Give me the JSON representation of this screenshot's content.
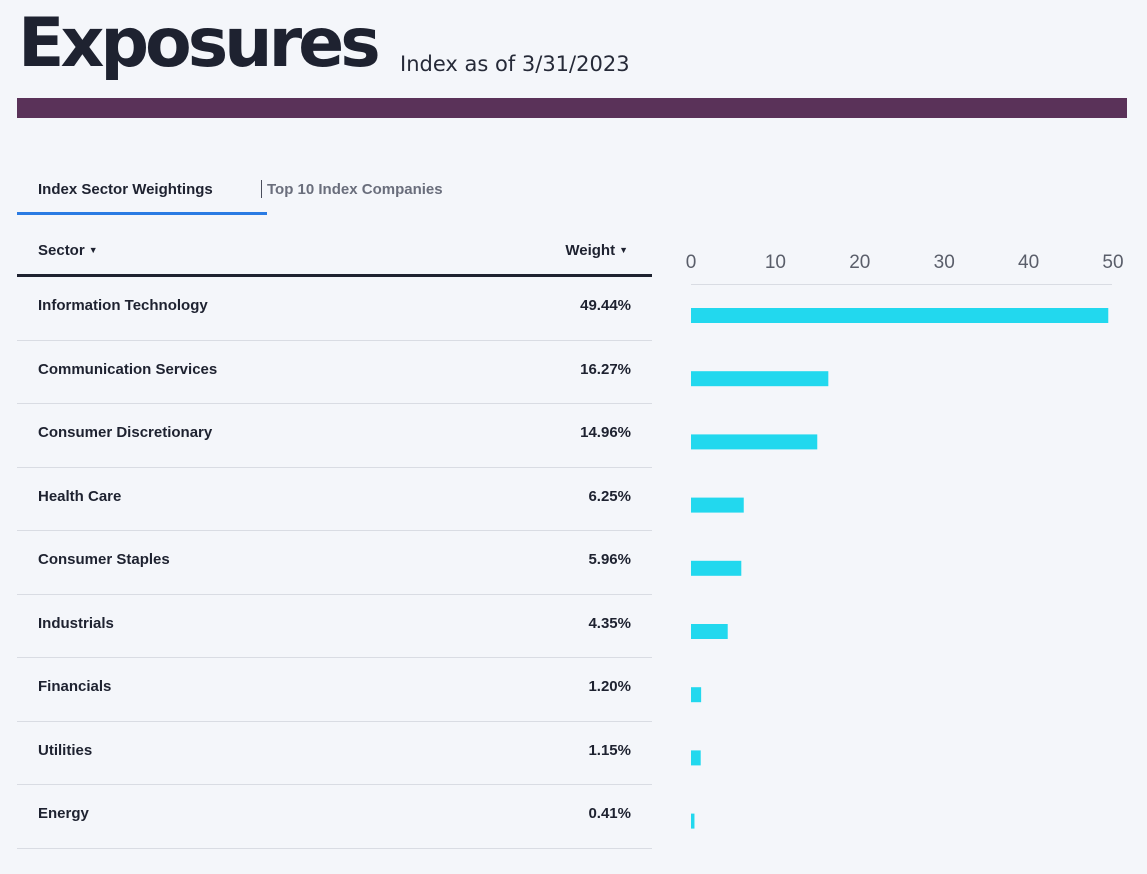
{
  "header": {
    "title": "Exposures",
    "as_of": "Index as of 3/31/2023",
    "accent_color": "#5a3259"
  },
  "tabs": [
    {
      "label": "Index Sector Weightings",
      "active": true
    },
    {
      "label": "Top 10 Index Companies",
      "active": false
    }
  ],
  "table": {
    "columns": {
      "sector": "Sector",
      "weight": "Weight"
    },
    "sort_icon": "caret-down-icon",
    "rows": [
      {
        "sector": "Information Technology",
        "weight": "49.44%"
      },
      {
        "sector": "Communication Services",
        "weight": "16.27%"
      },
      {
        "sector": "Consumer Discretionary",
        "weight": "14.96%"
      },
      {
        "sector": "Health Care",
        "weight": "6.25%"
      },
      {
        "sector": "Consumer Staples",
        "weight": "5.96%"
      },
      {
        "sector": "Industrials",
        "weight": "4.35%"
      },
      {
        "sector": "Financials",
        "weight": "1.20%"
      },
      {
        "sector": "Utilities",
        "weight": "1.15%"
      },
      {
        "sector": "Energy",
        "weight": "0.41%"
      }
    ]
  },
  "chart_data": {
    "type": "bar",
    "orientation": "horizontal",
    "categories": [
      "Information Technology",
      "Communication Services",
      "Consumer Discretionary",
      "Health Care",
      "Consumer Staples",
      "Industrials",
      "Financials",
      "Utilities",
      "Energy"
    ],
    "values": [
      49.44,
      16.27,
      14.96,
      6.25,
      5.96,
      4.35,
      1.2,
      1.15,
      0.41
    ],
    "xlim": [
      0,
      50
    ],
    "x_ticks": [
      "0",
      "10",
      "20",
      "30",
      "40",
      "50"
    ],
    "x_axis_position": "top",
    "bar_color": "#22d8ee",
    "grid": false,
    "title": "",
    "xlabel": "",
    "ylabel": ""
  }
}
